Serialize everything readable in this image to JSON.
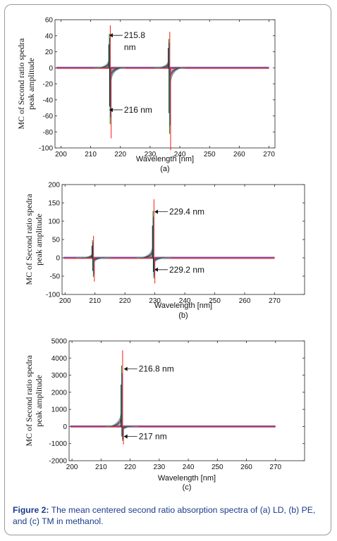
{
  "caption": {
    "label": "Figure 2:",
    "text": " The mean centered second ratio absorption spectra of (a) LD, (b) PE, and (c) TM in methanol."
  },
  "chart_data": [
    {
      "panel_label": "(a)",
      "type": "line",
      "xlabel": "Wavelength [nm]",
      "ylabel": [
        "MC of Second ratio spedra",
        "peak amplitude"
      ],
      "xlim": [
        198,
        272
      ],
      "ylim": [
        -100,
        60
      ],
      "xticks": [
        "200",
        "210",
        "220",
        "230",
        "240",
        "250",
        "260",
        "270"
      ],
      "yticks": [
        "60",
        "40",
        "20",
        "0",
        "-20",
        "-40",
        "-60",
        "-80",
        "-100"
      ],
      "peaks": [
        {
          "x": 216.5,
          "max": 53,
          "min": -88
        },
        {
          "x": 236.5,
          "max": 45,
          "min": -103
        }
      ],
      "x_end": 270,
      "annotations": [
        {
          "text": "215.8",
          "x": 216.0,
          "y": 37
        },
        {
          "text": "nm",
          "x": 216.0,
          "y": 22
        },
        {
          "text": "216 nm",
          "x": 216.0,
          "y": -56
        }
      ]
    },
    {
      "panel_label": "(b)",
      "type": "line",
      "xlabel": "Wavelength [nm]",
      "ylabel": [
        "MC of Second ratio spedra",
        "peak amplitude"
      ],
      "xlim": [
        199,
        280
      ],
      "ylim": [
        -100,
        200
      ],
      "xticks": [
        "200",
        "210",
        "220",
        "230",
        "240",
        "250",
        "260",
        "270"
      ],
      "yticks": [
        "200",
        "150",
        "100",
        "50",
        "0",
        "-50",
        "-100"
      ],
      "peaks": [
        {
          "x": 209.4,
          "max": 60,
          "min": -65
        },
        {
          "x": 229.6,
          "max": 160,
          "min": -70
        }
      ],
      "x_end": 270,
      "annotations": [
        {
          "text": "229.4 nm",
          "x": 229.6,
          "y": 118
        },
        {
          "text": "229.2 nm",
          "x": 229.6,
          "y": -40
        }
      ]
    },
    {
      "panel_label": "(c)",
      "type": "line",
      "xlabel": "Wavelength [nm]",
      "ylabel": [
        "MC of Second ratio spedra",
        "peak amplitude"
      ],
      "xlim": [
        199,
        280
      ],
      "ylim": [
        -2000,
        5000
      ],
      "xticks": [
        "200",
        "210",
        "220",
        "230",
        "240",
        "250",
        "260",
        "270"
      ],
      "yticks": [
        "5000",
        "4000",
        "3000",
        "2000",
        "1000",
        "0",
        "-1000",
        "-2000"
      ],
      "peaks": [
        {
          "x": 217.3,
          "max": 4450,
          "min": -1050
        }
      ],
      "x_end": 270,
      "annotations": [
        {
          "text": "216.8 nm",
          "x": 217.6,
          "y": 3200
        },
        {
          "text": "217 nm",
          "x": 217.6,
          "y": -750
        }
      ]
    }
  ],
  "colors": {
    "series": [
      "#ff2a2a",
      "#1a9a1a",
      "#2040d0",
      "#000000",
      "#d020c0",
      "#ff8800",
      "#00b0c0"
    ],
    "caption": "#1a3a8c"
  }
}
